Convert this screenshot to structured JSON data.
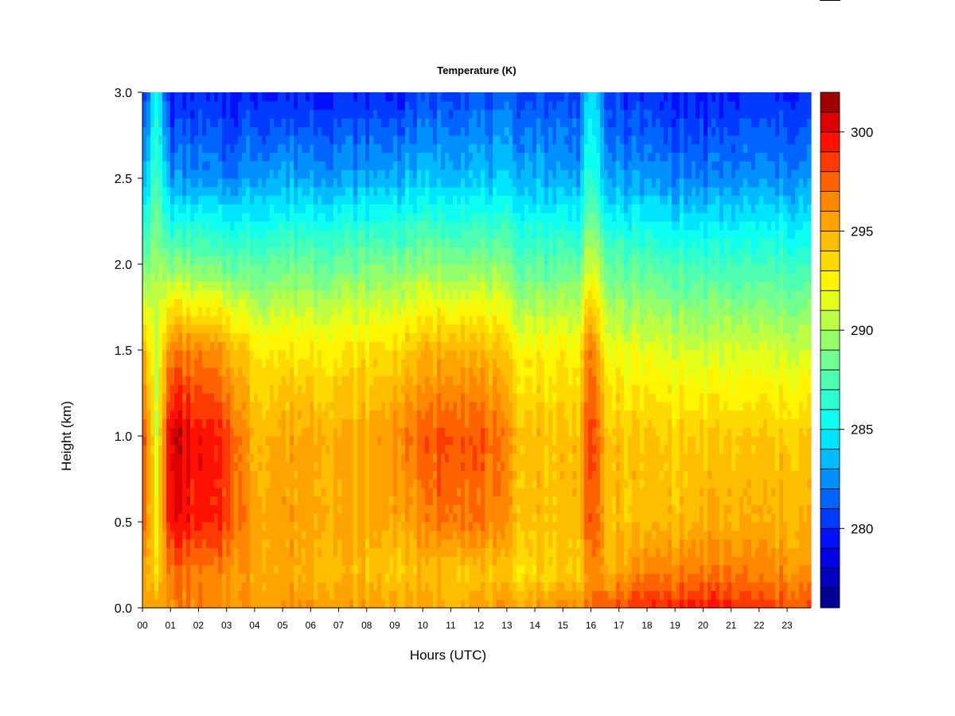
{
  "chart_data": {
    "type": "heatmap",
    "title": "Temperature (K)",
    "xlabel": "Hours (UTC)",
    "ylabel": "Height (km)",
    "xlim": [
      0,
      23.85
    ],
    "ylim": [
      0.0,
      3.0
    ],
    "x_ticks": [
      "00",
      "01",
      "02",
      "03",
      "04",
      "05",
      "06",
      "07",
      "08",
      "09",
      "10",
      "11",
      "12",
      "13",
      "14",
      "15",
      "16",
      "17",
      "18",
      "19",
      "20",
      "21",
      "22",
      "23"
    ],
    "y_ticks": [
      "0.0",
      "0.5",
      "1.0",
      "1.5",
      "2.0",
      "2.5",
      "3.0"
    ],
    "colorbar": {
      "min": 276,
      "max": 302,
      "step": 1,
      "ticks": [
        "280",
        "285",
        "290",
        "295",
        "300"
      ]
    },
    "heights_km": [
      0.0,
      0.2,
      0.5,
      1.0,
      1.5,
      2.0,
      2.5,
      3.0
    ],
    "profiles": [
      {
        "hour": 0.0,
        "temps": [
          296.5,
          297.0,
          298.5,
          299.5,
          296.0,
          289.0,
          283.5,
          280.5
        ]
      },
      {
        "hour": 0.5,
        "temps": [
          295.5,
          293.0,
          292.0,
          291.0,
          290.5,
          289.5,
          287.0,
          285.0
        ]
      },
      {
        "hour": 1.0,
        "temps": [
          296.5,
          297.0,
          300.0,
          301.0,
          297.0,
          289.0,
          282.5,
          279.5
        ]
      },
      {
        "hour": 2.0,
        "temps": [
          296.5,
          296.5,
          299.0,
          299.5,
          296.5,
          288.5,
          282.5,
          280.0
        ]
      },
      {
        "hour": 3.0,
        "temps": [
          296.0,
          296.0,
          298.5,
          298.5,
          295.5,
          288.0,
          282.0,
          279.5
        ]
      },
      {
        "hour": 4.0,
        "temps": [
          296.0,
          295.5,
          295.5,
          295.0,
          293.0,
          288.0,
          283.0,
          280.0
        ]
      },
      {
        "hour": 6.0,
        "temps": [
          296.0,
          295.0,
          295.5,
          295.5,
          293.0,
          288.5,
          283.0,
          280.0
        ]
      },
      {
        "hour": 8.0,
        "temps": [
          295.5,
          294.5,
          295.0,
          295.0,
          293.0,
          288.5,
          283.0,
          280.0
        ]
      },
      {
        "hour": 9.5,
        "temps": [
          295.5,
          294.0,
          295.5,
          297.0,
          294.0,
          289.0,
          283.5,
          280.0
        ]
      },
      {
        "hour": 11.0,
        "temps": [
          295.5,
          294.5,
          297.5,
          298.5,
          295.5,
          289.5,
          284.0,
          281.0
        ]
      },
      {
        "hour": 12.5,
        "temps": [
          295.5,
          294.0,
          296.5,
          297.5,
          294.5,
          289.0,
          283.5,
          281.0
        ]
      },
      {
        "hour": 13.5,
        "temps": [
          295.5,
          293.5,
          294.5,
          294.5,
          292.5,
          288.0,
          283.5,
          281.0
        ]
      },
      {
        "hour": 15.5,
        "temps": [
          296.5,
          294.0,
          294.5,
          294.5,
          292.5,
          288.0,
          283.0,
          280.5
        ]
      },
      {
        "hour": 16.0,
        "temps": [
          297.5,
          296.5,
          298.5,
          299.0,
          297.5,
          291.5,
          287.0,
          285.0
        ]
      },
      {
        "hour": 16.5,
        "temps": [
          297.5,
          295.0,
          294.5,
          294.5,
          292.0,
          288.0,
          283.0,
          280.5
        ]
      },
      {
        "hour": 18.0,
        "temps": [
          299.0,
          296.5,
          294.5,
          294.0,
          291.5,
          287.5,
          282.5,
          280.0
        ]
      },
      {
        "hour": 20.0,
        "temps": [
          299.5,
          297.0,
          295.0,
          294.0,
          291.0,
          287.0,
          282.0,
          279.5
        ]
      },
      {
        "hour": 22.0,
        "temps": [
          298.5,
          296.5,
          295.0,
          294.0,
          291.0,
          287.0,
          282.5,
          280.0
        ]
      },
      {
        "hour": 23.85,
        "temps": [
          298.0,
          296.0,
          295.0,
          294.0,
          291.0,
          287.0,
          282.5,
          280.0
        ]
      }
    ]
  }
}
